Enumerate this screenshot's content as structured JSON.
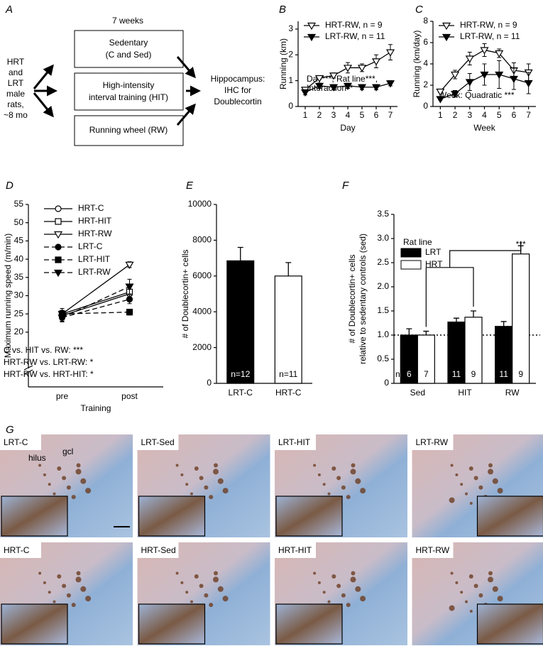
{
  "panel_a": {
    "label": "A",
    "duration": "7 weeks",
    "subjects": [
      "HRT",
      "and",
      "LRT",
      "male",
      "rats,",
      "~8 mo"
    ],
    "groups": [
      [
        "Sedentary",
        "(C and Sed)"
      ],
      [
        "High-intensity",
        "interval training (HIT)"
      ],
      [
        "Running wheel (RW)"
      ]
    ],
    "outcome": [
      "Hippocampus:",
      "IHC for",
      "Doublecortin"
    ]
  },
  "chart_data": [
    {
      "panel": "B",
      "type": "line",
      "x": [
        1,
        2,
        3,
        4,
        5,
        6,
        7
      ],
      "xlim": [
        0.5,
        7.5
      ],
      "xticks": [
        1,
        2,
        3,
        4,
        5,
        6,
        7
      ],
      "ylim": [
        0,
        3.3
      ],
      "yticks": [
        0,
        1,
        2,
        3
      ],
      "xlabel": "Day",
      "ylabel": [
        "Running (km)"
      ],
      "series": [
        {
          "name": "HRT-RW, n = 9",
          "color": "#000000",
          "marker": "triangle-down",
          "filled": false,
          "dash": false,
          "values": [
            0.65,
            1.1,
            1.2,
            1.5,
            1.5,
            1.75,
            2.1
          ],
          "errors": [
            0.05,
            0.05,
            0.1,
            0.2,
            0.15,
            0.25,
            0.3
          ]
        },
        {
          "name": "LRT-RW, n = 11",
          "color": "#000000",
          "marker": "triangle-down",
          "filled": true,
          "dash": false,
          "values": [
            0.55,
            0.8,
            0.75,
            0.8,
            0.75,
            0.75,
            0.9
          ],
          "errors": [
            0.1,
            0.1,
            0.1,
            0.1,
            0.1,
            0.1,
            0.1
          ]
        }
      ],
      "annotation": [
        "Day***, Rat line***,",
        "Interaction**"
      ],
      "legend": "upper left"
    },
    {
      "panel": "C",
      "type": "line",
      "x": [
        1,
        2,
        3,
        4,
        5,
        6,
        7
      ],
      "xlim": [
        0.5,
        7.5
      ],
      "xticks": [
        1,
        2,
        3,
        4,
        5,
        6,
        7
      ],
      "ylim": [
        0,
        8
      ],
      "yticks": [
        0,
        2,
        4,
        6,
        8
      ],
      "xlabel": "Week",
      "ylabel": [
        "Running (km/day)"
      ],
      "series": [
        {
          "name": "HRT-RW, n = 9",
          "color": "#000000",
          "marker": "triangle-down",
          "filled": false,
          "dash": false,
          "values": [
            1.4,
            3.0,
            4.5,
            5.3,
            5.0,
            3.4,
            3.2
          ],
          "errors": [
            0.1,
            0.4,
            0.6,
            0.6,
            0.4,
            0.7,
            0.8
          ]
        },
        {
          "name": "LRT-RW, n = 11",
          "color": "#000000",
          "marker": "triangle-down",
          "filled": true,
          "dash": false,
          "values": [
            0.7,
            1.2,
            2.3,
            3.0,
            3.0,
            2.6,
            2.2
          ],
          "errors": [
            0.1,
            0.3,
            0.8,
            1.0,
            1.3,
            1.0,
            1.0
          ]
        }
      ],
      "annotation": [
        "Week: Quadratic ***"
      ],
      "legend": "upper left"
    },
    {
      "panel": "D",
      "type": "line",
      "categories": [
        "pre",
        "post"
      ],
      "ylim": [
        5,
        55
      ],
      "yticks": [
        20,
        25,
        30,
        35,
        40,
        45,
        50,
        55
      ],
      "xlabel": "Training",
      "ylabel": [
        "Maximum running speed (m/min)"
      ],
      "series": [
        {
          "name": "HRT-C",
          "color": "#000000",
          "marker": "circle",
          "filled": false,
          "dash": false,
          "values": [
            24.5,
            30.5
          ],
          "errors": [
            1.2,
            1.0
          ]
        },
        {
          "name": "HRT-HIT",
          "color": "#000000",
          "marker": "square",
          "filled": false,
          "dash": false,
          "values": [
            25,
            31
          ],
          "errors": [
            1.5,
            1.5
          ]
        },
        {
          "name": "HRT-RW",
          "color": "#000000",
          "marker": "triangle-down",
          "filled": false,
          "dash": false,
          "values": [
            25,
            38.5
          ],
          "errors": [
            1.5,
            0.8
          ]
        },
        {
          "name": "LRT-C",
          "color": "#000000",
          "marker": "circle",
          "filled": true,
          "dash": true,
          "values": [
            24,
            29
          ],
          "errors": [
            1.2,
            1.2
          ]
        },
        {
          "name": "LRT-HIT",
          "color": "#000000",
          "marker": "square",
          "filled": true,
          "dash": true,
          "values": [
            25,
            25.5
          ],
          "errors": [
            1.0,
            0.8
          ]
        },
        {
          "name": "LRT-RW",
          "color": "#000000",
          "marker": "triangle-down",
          "filled": true,
          "dash": true,
          "values": [
            24,
            32.5
          ],
          "errors": [
            1.0,
            2.0
          ]
        }
      ],
      "annotation": [
        "C vs. HIT vs. RW: ***",
        "HRT-RW vs. LRT-RW: *",
        "HRT-RW vs. HRT-HIT: *"
      ],
      "legend": "upper left"
    },
    {
      "panel": "E",
      "type": "bar",
      "categories": [
        "LRT-C",
        "HRT-C"
      ],
      "values": [
        6850,
        6000
      ],
      "errors": [
        750,
        750
      ],
      "colors": [
        "#000000",
        "#ffffff"
      ],
      "n_labels": [
        "n=12",
        "n=11"
      ],
      "ylim": [
        0,
        10000
      ],
      "yticks": [
        0,
        2000,
        4000,
        6000,
        8000,
        10000
      ],
      "ylabel": [
        "# of Doublecortin+ cells"
      ]
    },
    {
      "panel": "F",
      "type": "bar",
      "categories": [
        "Sed",
        "HIT",
        "RW"
      ],
      "legend_title": "Rat line",
      "n_prefix": "n=",
      "series": [
        {
          "name": "LRT",
          "color": "#000000",
          "values": [
            1.0,
            1.27,
            1.18
          ],
          "errors": [
            0.13,
            0.08,
            0.1
          ],
          "n_labels": [
            "6",
            "11",
            "11"
          ]
        },
        {
          "name": "HRT",
          "color": "#ffffff",
          "values": [
            1.0,
            1.37,
            2.68
          ],
          "errors": [
            0.08,
            0.13,
            0.17
          ],
          "n_labels": [
            "7",
            "9",
            "9"
          ]
        }
      ],
      "reference_line": 1,
      "significance": "***",
      "ylim": [
        0,
        3.5
      ],
      "yticks": [
        0,
        0.5,
        {
          "value": 1,
          "label": "1.0"
        },
        1.5,
        {
          "value": 2,
          "label": "2.0"
        },
        2.5,
        {
          "value": 3,
          "label": "3.0"
        },
        3.5
      ],
      "ylabel": [
        "# of Doublecortin+ cells",
        "relative to sedentary controls (sed)"
      ],
      "legend": "upper left"
    }
  ],
  "panel_g": {
    "label": "G",
    "images": [
      "LRT-C",
      "LRT-Sed",
      "LRT-HIT",
      "LRT-RW",
      "HRT-C",
      "HRT-Sed",
      "HRT-HIT",
      "HRT-RW"
    ],
    "regions": [
      "hilus",
      "gcl"
    ]
  }
}
